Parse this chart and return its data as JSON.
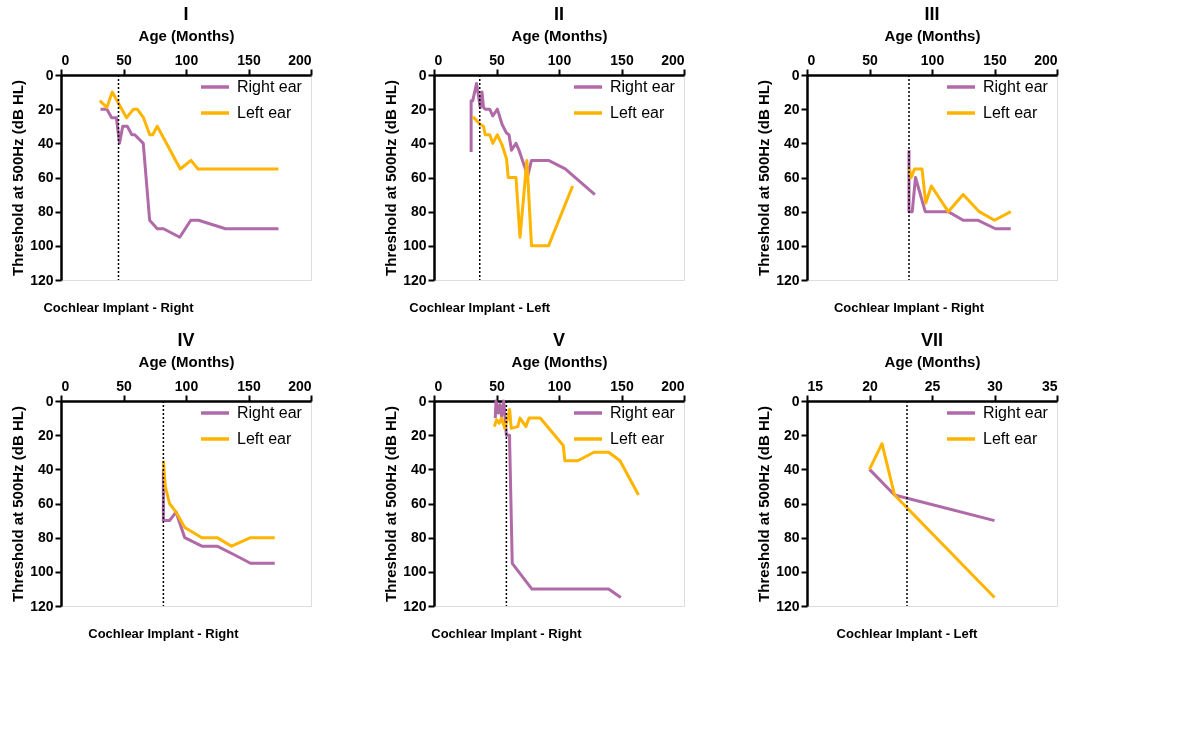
{
  "chart_data": [
    {
      "type": "line",
      "title": "I",
      "xlabel": "Age (Months)",
      "ylabel": "Threshold at 500Hz (dB HL)",
      "xlim": [
        0,
        200
      ],
      "xticks": [
        0,
        50,
        100,
        150,
        200
      ],
      "ylim": [
        120,
        0
      ],
      "yticks": [
        0,
        20,
        40,
        60,
        80,
        100,
        120
      ],
      "legend": "top right",
      "series": [
        {
          "name": "Right ear",
          "color": "#b06aa8",
          "x": [
            31.6,
            36.7,
            40.5,
            44.3,
            46.8,
            49.4,
            53,
            56.7,
            59,
            65.8,
            70.9,
            77,
            82,
            95,
            103.8,
            110,
            131.6,
            174
          ],
          "values": [
            20,
            20,
            25,
            25,
            40,
            30,
            30,
            35,
            35,
            40,
            85,
            90,
            90,
            95,
            85,
            85,
            90,
            90
          ]
        },
        {
          "name": "Left ear",
          "color": "#ffb400",
          "x": [
            31,
            36.7,
            41,
            52.4,
            58,
            61,
            66,
            71,
            73.4,
            77,
            95.4,
            104,
            109.6,
            174
          ],
          "values": [
            15,
            19,
            10,
            25,
            20,
            20,
            25,
            35,
            35,
            30,
            55,
            50,
            55,
            55
          ]
        }
      ],
      "ref_lines": [
        {
          "axis": "x",
          "value": 46,
          "label": "Cochlear Implant - Right",
          "line_style": "dotted"
        }
      ]
    },
    {
      "type": "line",
      "title": "II",
      "xlabel": "Age (Months)",
      "ylabel": "Threshold at 500Hz (dB HL)",
      "xlim": [
        0,
        200
      ],
      "xticks": [
        0,
        50,
        100,
        150,
        200
      ],
      "ylim": [
        120,
        0
      ],
      "yticks": [
        0,
        20,
        40,
        60,
        80,
        100,
        120
      ],
      "legend": "top right",
      "series": [
        {
          "name": "Right ear",
          "color": "#b06aa8",
          "x": [
            29.7,
            29.7,
            31,
            34,
            37,
            38.4,
            39.6,
            41,
            44.6,
            47,
            50.7,
            54.5,
            58,
            60,
            62,
            65.6,
            68,
            75,
            78,
            91.6,
            105,
            128.7
          ],
          "values": [
            45,
            15,
            15,
            5,
            19,
            10,
            19,
            20,
            20,
            24,
            20,
            29,
            34,
            35,
            44,
            40,
            44,
            59,
            50,
            50,
            55,
            70
          ]
        },
        {
          "name": "Left ear",
          "color": "#ffb400",
          "x": [
            30.4,
            32,
            37,
            39.6,
            41,
            44.6,
            47,
            50.7,
            54.5,
            58,
            59.4,
            65.6,
            68.8,
            74.3,
            78,
            91.6,
            110.9
          ],
          "values": [
            25,
            25,
            29,
            30,
            35,
            35,
            40,
            35,
            41,
            49,
            60,
            60,
            95,
            50,
            100,
            100,
            65
          ]
        }
      ],
      "ref_lines": [
        {
          "axis": "x",
          "value": 36.6,
          "label": "Cochlear Implant - Left",
          "line_style": "dotted"
        }
      ]
    },
    {
      "type": "line",
      "title": "III",
      "xlabel": "Age (Months)",
      "ylabel": "Threshold at 500Hz (dB HL)",
      "xlim": [
        0,
        200
      ],
      "xticks": [
        0,
        50,
        100,
        150,
        200
      ],
      "ylim": [
        120,
        0
      ],
      "yticks": [
        0,
        20,
        40,
        60,
        80,
        100,
        120
      ],
      "legend": "top right",
      "series": [
        {
          "name": "Right ear",
          "color": "#b06aa8",
          "x": [
            81.6,
            81.6,
            84.2,
            86.8,
            94.6,
            113,
            124.9,
            136.5,
            150.8,
            163
          ],
          "values": [
            44,
            80,
            80,
            60,
            80,
            80,
            85,
            85,
            90,
            90
          ]
        },
        {
          "name": "Left ear",
          "color": "#ffb400",
          "x": [
            82,
            83.4,
            86,
            92,
            95,
            99.5,
            113,
            124.9,
            137.8,
            150,
            163
          ],
          "values": [
            55,
            60,
            55,
            55,
            75,
            65,
            80,
            70,
            80,
            85,
            80
          ]
        }
      ],
      "ref_lines": [
        {
          "axis": "x",
          "value": 81.6,
          "label": "Cochlear Implant - Right",
          "line_style": "dotted"
        }
      ]
    },
    {
      "type": "line",
      "title": "IV",
      "xlabel": "Age (Months)",
      "ylabel": "Threshold at 500Hz (dB HL)",
      "xlim": [
        0,
        200
      ],
      "xticks": [
        0,
        50,
        100,
        150,
        200
      ],
      "ylim": [
        120,
        0
      ],
      "yticks": [
        0,
        20,
        40,
        60,
        80,
        100,
        120
      ],
      "legend": "top right",
      "series": [
        {
          "name": "Right ear",
          "color": "#b06aa8",
          "x": [
            81.9,
            81.9,
            86.8,
            92,
            99,
            112.7,
            124.9,
            138.6,
            151.6,
            171
          ],
          "values": [
            40,
            70,
            70,
            65,
            80,
            85,
            85,
            90,
            95,
            95
          ]
        },
        {
          "name": "Left ear",
          "color": "#ffb400",
          "x": [
            81.9,
            83.4,
            86.8,
            92,
            99,
            112.7,
            124.9,
            136.5,
            151.6,
            171
          ],
          "values": [
            35,
            50,
            60,
            65,
            74,
            80,
            80,
            85,
            80,
            80
          ]
        }
      ],
      "ref_lines": [
        {
          "axis": "x",
          "value": 81.9,
          "label": "Cochlear Implant - Right",
          "line_style": "dotted"
        }
      ]
    },
    {
      "type": "line",
      "title": "V",
      "xlabel": "Age (Months)",
      "ylabel": "Threshold at 500Hz (dB HL)",
      "xlim": [
        0,
        200
      ],
      "xticks": [
        0,
        50,
        100,
        150,
        200
      ],
      "ylim": [
        120,
        0
      ],
      "yticks": [
        0,
        20,
        40,
        60,
        80,
        100,
        120
      ],
      "legend": "top right",
      "series": [
        {
          "name": "Right ear",
          "color": "#b06aa8",
          "x": [
            49,
            49.6,
            51.4,
            52.7,
            54,
            55.8,
            57.9,
            60.5,
            60.5,
            62.6,
            78.2,
            139.7,
            149.4
          ],
          "values": [
            10,
            0,
            7,
            2,
            9,
            0,
            20,
            20,
            24,
            95,
            110,
            110,
            115
          ]
        },
        {
          "name": "Left ear",
          "color": "#ffb400",
          "x": [
            48.3,
            50,
            52.2,
            54,
            56.6,
            59,
            60.5,
            61.8,
            67,
            68.8,
            73.5,
            76,
            85,
            103.4,
            104.7,
            115,
            128,
            139.7,
            148.8,
            163.6
          ],
          "values": [
            15,
            11,
            13,
            10,
            16,
            10,
            5,
            16,
            15,
            10,
            15,
            10,
            10,
            26,
            35,
            35,
            30,
            30,
            35,
            55
          ]
        }
      ],
      "ref_lines": [
        {
          "axis": "x",
          "value": 57.9,
          "label": "Cochlear Implant - Right",
          "line_style": "dotted"
        }
      ]
    },
    {
      "type": "line",
      "title": "VII",
      "xlabel": "Age (Months)",
      "ylabel": "Threshold at 500Hz (dB HL)",
      "xlim": [
        15,
        35
      ],
      "xticks": [
        15,
        20,
        25,
        30,
        35
      ],
      "ylim": [
        120,
        0
      ],
      "yticks": [
        0,
        20,
        40,
        60,
        80,
        100,
        120
      ],
      "legend": "top right",
      "series": [
        {
          "name": "Right ear",
          "color": "#b06aa8",
          "x": [
            20,
            22,
            30
          ],
          "values": [
            40,
            55,
            70
          ]
        },
        {
          "name": "Left ear",
          "color": "#ffb400",
          "x": [
            20,
            21,
            22,
            30
          ],
          "values": [
            40,
            25,
            55,
            115
          ]
        }
      ],
      "ref_lines": [
        {
          "axis": "x",
          "value": 23,
          "label": "Cochlear Implant - Left",
          "line_style": "dotted"
        }
      ]
    }
  ]
}
